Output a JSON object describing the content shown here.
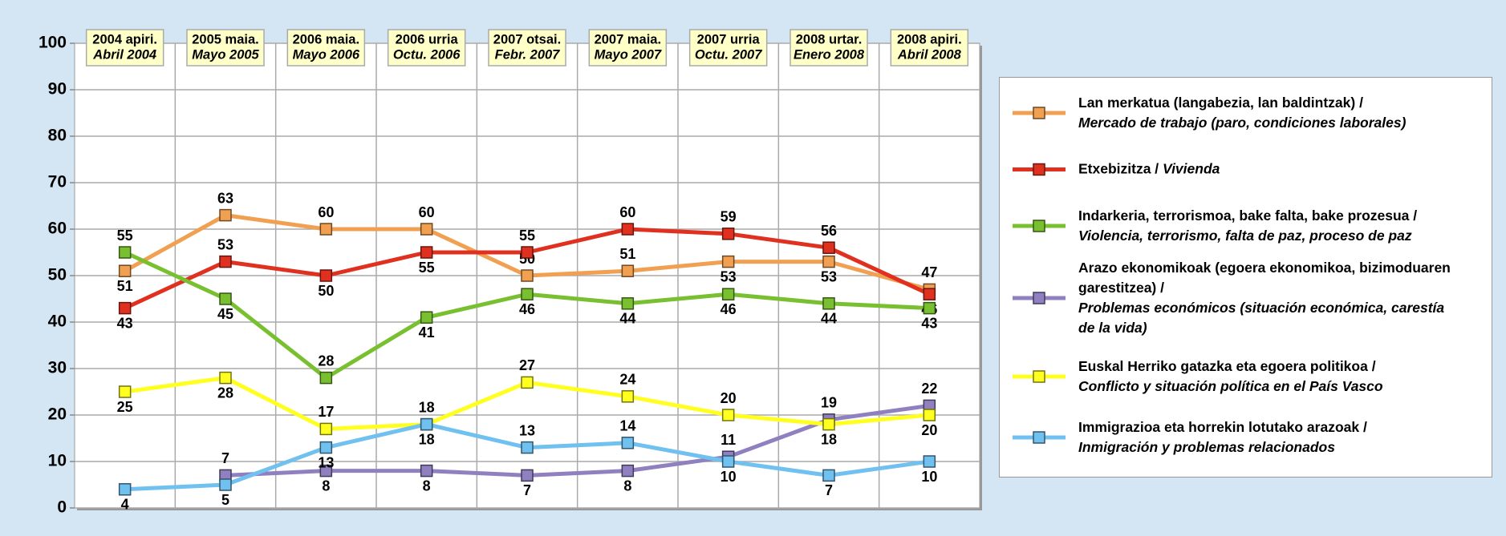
{
  "chart_data": {
    "type": "line",
    "categories": [
      "2004 apiri.",
      "2005 maia.",
      "2006 maia.",
      "2006 urria",
      "2007 otsai.",
      "2007 maia.",
      "2007 urria",
      "2008 urtar.",
      "2008 apiri."
    ],
    "category_subtitles": [
      "Abril 2004",
      "Mayo 2005",
      "Mayo 2006",
      "Octu. 2006",
      "Febr. 2007",
      "Mayo 2007",
      "Octu. 2007",
      "Enero 2008",
      "Abril 2008"
    ],
    "ylim": [
      0,
      100
    ],
    "yticks": [
      0,
      10,
      20,
      30,
      40,
      50,
      60,
      70,
      80,
      90,
      100
    ],
    "grid": true,
    "series": [
      {
        "name": {
          "eu": "Lan merkatua (langabezia, lan baldintzak) /",
          "es": "Mercado de trabajo (paro, condiciones laborales)"
        },
        "color": "#f0a050",
        "values": [
          51,
          63,
          60,
          60,
          50,
          51,
          53,
          53,
          47
        ]
      },
      {
        "name": {
          "eu": "Etxebizitza /",
          "es": "Vivienda"
        },
        "color": "#e03020",
        "values": [
          43,
          53,
          50,
          55,
          55,
          60,
          59,
          56,
          46
        ]
      },
      {
        "name": {
          "eu": "Indarkeria, terrorismoa, bake falta, bake prozesua /",
          "es": "Violencia, terrorismo, falta de paz, proceso de paz"
        },
        "color": "#78c030",
        "values": [
          55,
          45,
          28,
          41,
          46,
          44,
          46,
          44,
          43
        ]
      },
      {
        "name": {
          "eu": "Arazo ekonomikoak (egoera ekonomikoa, bizimoduaren garestitzea) /",
          "es": "Problemas económicos (situación económica, carestía de la vida)"
        },
        "color": "#9080c0",
        "values": [
          null,
          7,
          8,
          8,
          7,
          8,
          11,
          19,
          22
        ]
      },
      {
        "name": {
          "eu": "Euskal Herriko gatazka eta egoera politikoa /",
          "es": "Conflicto y  situación política en el País Vasco"
        },
        "color": "#ffff20",
        "values": [
          25,
          28,
          17,
          18,
          27,
          24,
          20,
          18,
          20
        ]
      },
      {
        "name": {
          "eu": "Immigrazioa eta horrekin lotutako arazoak /",
          "es": "Inmigración y problemas relacionados"
        },
        "color": "#70c0f0",
        "values": [
          4,
          5,
          13,
          18,
          13,
          14,
          10,
          7,
          10
        ]
      }
    ]
  }
}
